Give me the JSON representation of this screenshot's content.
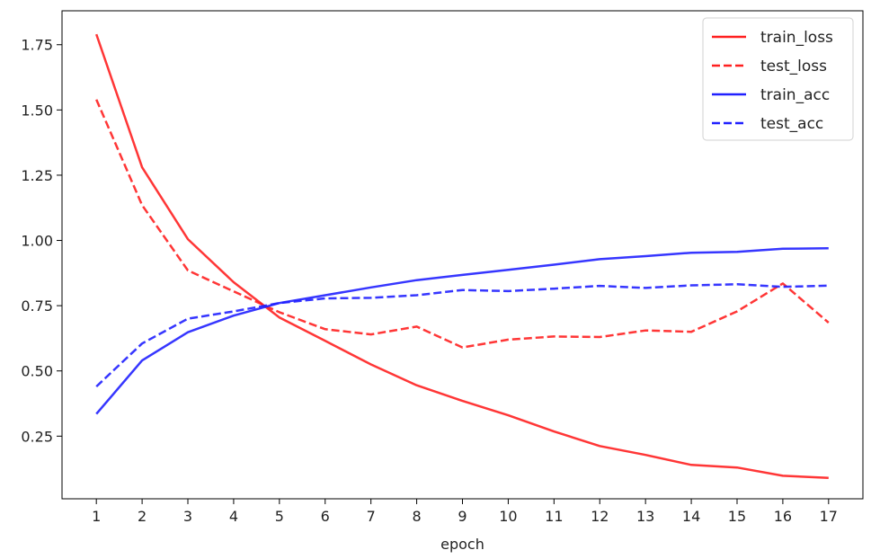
{
  "chart_data": {
    "type": "line",
    "title": "",
    "xlabel": "epoch",
    "ylabel": "",
    "x": [
      1,
      2,
      3,
      4,
      5,
      6,
      7,
      8,
      9,
      10,
      11,
      12,
      13,
      14,
      15,
      16,
      17
    ],
    "xlim": [
      0.25,
      17.75
    ],
    "ylim": [
      0.01,
      1.88
    ],
    "yticks": [
      0.25,
      0.5,
      0.75,
      1.0,
      1.25,
      1.5,
      1.75
    ],
    "ytick_labels": [
      "0.25",
      "0.50",
      "0.75",
      "1.00",
      "1.25",
      "1.50",
      "1.75"
    ],
    "xtick_labels": [
      "1",
      "2",
      "3",
      "4",
      "5",
      "6",
      "7",
      "8",
      "9",
      "10",
      "11",
      "12",
      "13",
      "14",
      "15",
      "16",
      "17"
    ],
    "grid": false,
    "legend_position": "top-right",
    "series": [
      {
        "name": "train_loss",
        "color": "#ff2020",
        "style": "solid",
        "values": [
          1.79,
          1.28,
          1.005,
          0.84,
          0.705,
          0.615,
          0.525,
          0.445,
          0.385,
          0.33,
          0.268,
          0.212,
          0.178,
          0.14,
          0.13,
          0.098,
          0.09
        ]
      },
      {
        "name": "test_loss",
        "color": "#ff2020",
        "style": "dashed",
        "values": [
          1.54,
          1.135,
          0.885,
          0.805,
          0.725,
          0.66,
          0.64,
          0.67,
          0.59,
          0.62,
          0.632,
          0.63,
          0.655,
          0.65,
          0.728,
          0.835,
          0.685
        ]
      },
      {
        "name": "train_acc",
        "color": "#2020ff",
        "style": "solid",
        "values": [
          0.335,
          0.54,
          0.648,
          0.712,
          0.76,
          0.79,
          0.82,
          0.848,
          0.868,
          0.887,
          0.907,
          0.928,
          0.94,
          0.953,
          0.956,
          0.968,
          0.97
        ]
      },
      {
        "name": "test_acc",
        "color": "#2020ff",
        "style": "dashed",
        "values": [
          0.44,
          0.605,
          0.7,
          0.728,
          0.76,
          0.778,
          0.78,
          0.79,
          0.81,
          0.806,
          0.815,
          0.826,
          0.818,
          0.828,
          0.832,
          0.822,
          0.827
        ]
      }
    ]
  }
}
